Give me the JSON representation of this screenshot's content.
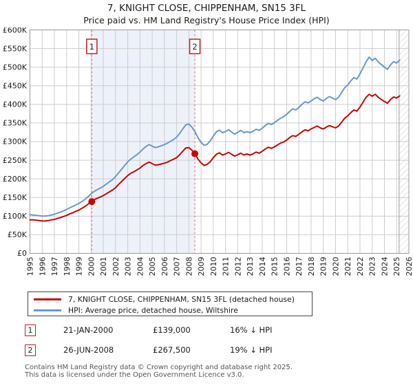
{
  "title": "7, KNIGHT CLOSE, CHIPPENHAM, SN15 3FL",
  "subtitle": "Price paid vs. HM Land Registry's House Price Index (HPI)",
  "chart_data": {
    "type": "line",
    "unit": "GBP thousands",
    "x_axis": {
      "min": 1995,
      "max": 2026,
      "tick_labels": [
        "1995",
        "1996",
        "1997",
        "1998",
        "1999",
        "2000",
        "2001",
        "2002",
        "2003",
        "2004",
        "2005",
        "2006",
        "2007",
        "2008",
        "2009",
        "2010",
        "2011",
        "2012",
        "2013",
        "2014",
        "2015",
        "2016",
        "2017",
        "2018",
        "2019",
        "2020",
        "2021",
        "2022",
        "2023",
        "2024",
        "2025",
        "2026"
      ]
    },
    "y_axis": {
      "min": 0,
      "max": 600,
      "tick_labels": [
        "£0",
        "£50K",
        "£100K",
        "£150K",
        "£200K",
        "£250K",
        "£300K",
        "£350K",
        "£400K",
        "£450K",
        "£500K",
        "£550K",
        "£600K"
      ],
      "tick_values": [
        0,
        50,
        100,
        150,
        200,
        250,
        300,
        350,
        400,
        450,
        500,
        550,
        600
      ]
    },
    "grid": true,
    "legend_position": "bottom",
    "series": [
      {
        "name": "7, KNIGHT CLOSE, CHIPPENHAM, SN15 3FL (detached house)",
        "color": "#cc0000",
        "x_start": 1995.0,
        "x_step": 0.25,
        "values": [
          90,
          90,
          89,
          88,
          87,
          87,
          88,
          90,
          91,
          94,
          96,
          99,
          102,
          106,
          109,
          113,
          116,
          121,
          126,
          132,
          139,
          144,
          148,
          151,
          155,
          160,
          165,
          170,
          176,
          185,
          193,
          201,
          209,
          215,
          219,
          224,
          229,
          236,
          241,
          245,
          241,
          237,
          238,
          240,
          242,
          245,
          249,
          253,
          257,
          265,
          274,
          283,
          284,
          277,
          267,
          253,
          243,
          236,
          239,
          246,
          257,
          266,
          270,
          264,
          267,
          271,
          266,
          261,
          265,
          269,
          264,
          267,
          264,
          267,
          272,
          269,
          274,
          280,
          285,
          282,
          286,
          291,
          296,
          299,
          304,
          311,
          316,
          314,
          320,
          326,
          332,
          329,
          334,
          338,
          342,
          337,
          334,
          339,
          343,
          340,
          337,
          342,
          352,
          363,
          369,
          378,
          385,
          382,
          393,
          406,
          419,
          427,
          422,
          427,
          419,
          413,
          408,
          403,
          413,
          420,
          417,
          423
        ]
      },
      {
        "name": "HPI: Average price, detached house, Wiltshire",
        "color": "#6699cc",
        "x_start": 1995.0,
        "x_step": 0.25,
        "values": [
          104,
          103,
          102,
          101,
          100,
          100,
          101,
          103,
          105,
          108,
          111,
          114,
          118,
          122,
          126,
          130,
          134,
          139,
          145,
          152,
          160,
          166,
          171,
          175,
          180,
          186,
          192,
          198,
          206,
          216,
          226,
          236,
          246,
          253,
          259,
          265,
          272,
          280,
          287,
          292,
          288,
          284,
          286,
          289,
          292,
          296,
          301,
          306,
          312,
          322,
          334,
          345,
          347,
          339,
          327,
          310,
          298,
          290,
          293,
          302,
          315,
          326,
          331,
          324,
          327,
          332,
          326,
          320,
          325,
          330,
          324,
          327,
          324,
          328,
          333,
          330,
          336,
          343,
          349,
          346,
          351,
          357,
          363,
          367,
          373,
          381,
          388,
          385,
          392,
          400,
          407,
          404,
          409,
          415,
          419,
          413,
          409,
          416,
          421,
          417,
          413,
          419,
          432,
          445,
          452,
          463,
          472,
          468,
          482,
          498,
          514,
          527,
          518,
          524,
          514,
          507,
          500,
          494,
          506,
          515,
          511,
          519
        ]
      }
    ],
    "sale_markers": [
      {
        "label": "1",
        "x": 2000.06,
        "value": 139
      },
      {
        "label": "2",
        "x": 2008.49,
        "value": 267.5
      }
    ],
    "shaded_region": {
      "from": 2000.06,
      "to": 2008.49
    },
    "hatch_region": {
      "from": 2025.2,
      "to": 2026
    }
  },
  "colors": {
    "property_line": "#cc0000",
    "hpi_line": "#6699cc",
    "sale_dashed": "#e06666",
    "shaded_region": "#edf1fa",
    "grid": "#cccccc",
    "plot_border": "#999999",
    "marker_box_border": "#bb2222",
    "hatch": "#c8c8c8"
  },
  "legend": {
    "items": [
      {
        "label": "7, KNIGHT CLOSE, CHIPPENHAM, SN15 3FL (detached house)",
        "color": "#cc0000"
      },
      {
        "label": "HPI: Average price, detached house, Wiltshire",
        "color": "#6699cc"
      }
    ]
  },
  "transactions": [
    {
      "num": "1",
      "date": "21-JAN-2000",
      "price": "£139,000",
      "hpi_diff": "16% ↓ HPI"
    },
    {
      "num": "2",
      "date": "26-JUN-2008",
      "price": "£267,500",
      "hpi_diff": "19% ↓ HPI"
    }
  ],
  "footer": {
    "line1": "Contains HM Land Registry data © Crown copyright and database right 2025.",
    "line2": "This data is licensed under the Open Government Licence v3.0."
  }
}
